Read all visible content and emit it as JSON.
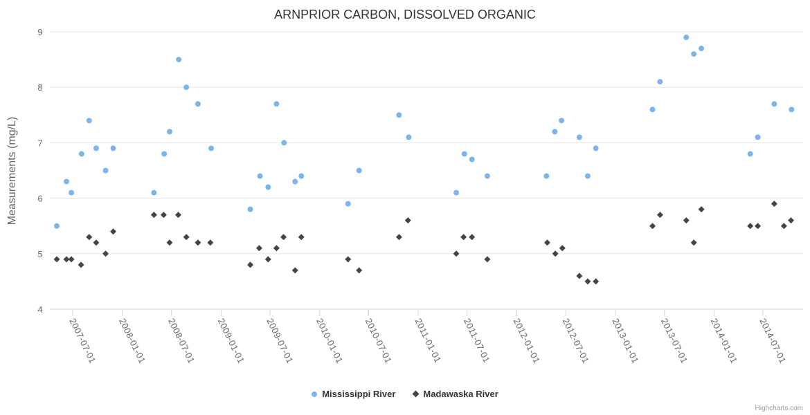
{
  "chart_data": {
    "type": "scatter",
    "title": "ARNPRIOR CARBON, DISSOLVED ORGANIC",
    "xlabel": "",
    "ylabel": "Measurements (mg/L)",
    "ylim": [
      4,
      9
    ],
    "yticks": [
      4,
      5,
      6,
      7,
      8,
      9
    ],
    "xticks": [
      "2007-07-01",
      "2008-01-01",
      "2008-07-01",
      "2009-01-01",
      "2009-07-01",
      "2010-01-01",
      "2010-07-01",
      "2011-01-01",
      "2011-07-01",
      "2012-01-01",
      "2012-07-01",
      "2013-01-01",
      "2013-07-01",
      "2014-01-01",
      "2014-07-01"
    ],
    "grid": "horizontal",
    "legend_position": "bottom-center",
    "background_color": "#ffffff",
    "title_color": "#333333",
    "axis_label_color": "#666666",
    "gridline_color": "#e6e6e6",
    "axis_line_color": "#ccd6eb",
    "series": [
      {
        "name": "Mississippi River",
        "color": "#7cb5ec",
        "marker": "circle",
        "points": [
          [
            "2007-05-03",
            5.5
          ],
          [
            "2007-06-08",
            6.3
          ],
          [
            "2007-06-26",
            6.1
          ],
          [
            "2007-08-03",
            6.8
          ],
          [
            "2007-08-31",
            7.4
          ],
          [
            "2007-09-26",
            6.9
          ],
          [
            "2007-10-31",
            6.5
          ],
          [
            "2007-11-28",
            6.9
          ],
          [
            "2008-04-27",
            6.1
          ],
          [
            "2008-06-04",
            6.8
          ],
          [
            "2008-06-24",
            7.2
          ],
          [
            "2008-07-28",
            8.5
          ],
          [
            "2008-08-25",
            8.0
          ],
          [
            "2008-10-07",
            7.7
          ],
          [
            "2008-11-25",
            6.9
          ],
          [
            "2009-04-19",
            5.8
          ],
          [
            "2009-05-25",
            6.4
          ],
          [
            "2009-06-24",
            6.2
          ],
          [
            "2009-07-25",
            7.7
          ],
          [
            "2009-08-22",
            7.0
          ],
          [
            "2009-10-02",
            6.3
          ],
          [
            "2009-10-25",
            6.4
          ],
          [
            "2010-04-16",
            5.9
          ],
          [
            "2010-05-27",
            6.5
          ],
          [
            "2010-10-22",
            7.5
          ],
          [
            "2010-11-27",
            7.1
          ],
          [
            "2011-05-22",
            6.1
          ],
          [
            "2011-06-21",
            6.8
          ],
          [
            "2011-07-19",
            6.7
          ],
          [
            "2011-09-14",
            6.4
          ],
          [
            "2012-04-20",
            6.4
          ],
          [
            "2012-05-21",
            7.2
          ],
          [
            "2012-06-15",
            7.4
          ],
          [
            "2012-08-20",
            7.1
          ],
          [
            "2012-09-20",
            6.4
          ],
          [
            "2012-10-20",
            6.9
          ],
          [
            "2013-05-18",
            7.6
          ],
          [
            "2013-06-15",
            8.1
          ],
          [
            "2013-09-20",
            8.9
          ],
          [
            "2013-10-18",
            8.6
          ],
          [
            "2013-11-15",
            8.7
          ],
          [
            "2014-05-15",
            6.8
          ],
          [
            "2014-06-12",
            7.1
          ],
          [
            "2014-08-12",
            7.7
          ],
          [
            "2014-10-15",
            7.6
          ]
        ]
      },
      {
        "name": "Madawaska River",
        "color": "#434348",
        "marker": "diamond",
        "points": [
          [
            "2007-05-03",
            4.9
          ],
          [
            "2007-06-08",
            4.9
          ],
          [
            "2007-06-26",
            4.9
          ],
          [
            "2007-08-01",
            4.8
          ],
          [
            "2007-08-31",
            5.3
          ],
          [
            "2007-09-26",
            5.2
          ],
          [
            "2007-10-31",
            5.0
          ],
          [
            "2007-11-28",
            5.4
          ],
          [
            "2008-04-27",
            5.7
          ],
          [
            "2008-06-02",
            5.7
          ],
          [
            "2008-06-24",
            5.2
          ],
          [
            "2008-07-26",
            5.7
          ],
          [
            "2008-08-25",
            5.3
          ],
          [
            "2008-10-07",
            5.2
          ],
          [
            "2008-11-22",
            5.2
          ],
          [
            "2009-04-19",
            4.8
          ],
          [
            "2009-05-22",
            5.1
          ],
          [
            "2009-06-24",
            4.9
          ],
          [
            "2009-07-25",
            5.1
          ],
          [
            "2009-08-20",
            5.3
          ],
          [
            "2009-10-02",
            4.7
          ],
          [
            "2009-10-25",
            5.3
          ],
          [
            "2010-04-16",
            4.9
          ],
          [
            "2010-05-27",
            4.7
          ],
          [
            "2010-10-22",
            5.3
          ],
          [
            "2010-11-24",
            5.6
          ],
          [
            "2011-05-22",
            5.0
          ],
          [
            "2011-06-18",
            5.3
          ],
          [
            "2011-07-19",
            5.3
          ],
          [
            "2011-09-14",
            4.9
          ],
          [
            "2012-04-23",
            5.2
          ],
          [
            "2012-05-23",
            5.0
          ],
          [
            "2012-06-18",
            5.1
          ],
          [
            "2012-08-20",
            4.6
          ],
          [
            "2012-09-20",
            4.5
          ],
          [
            "2012-10-20",
            4.5
          ],
          [
            "2013-05-18",
            5.5
          ],
          [
            "2013-06-15",
            5.7
          ],
          [
            "2013-09-20",
            5.6
          ],
          [
            "2013-10-18",
            5.2
          ],
          [
            "2013-11-15",
            5.8
          ],
          [
            "2014-05-15",
            5.5
          ],
          [
            "2014-06-12",
            5.5
          ],
          [
            "2014-08-12",
            5.9
          ],
          [
            "2014-09-17",
            5.5
          ],
          [
            "2014-10-13",
            5.6
          ]
        ]
      }
    ]
  },
  "legend": {
    "items": [
      {
        "label": "Mississippi River"
      },
      {
        "label": "Madawaska River"
      }
    ]
  },
  "credit": {
    "label": "Highcharts.com"
  }
}
